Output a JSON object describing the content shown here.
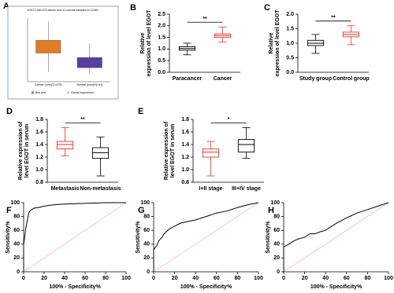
{
  "chart_data": [
    {
      "type": "screenshot",
      "panel": "A",
      "title": "EGOT with 475 cancer and 41 normal samples in COAD",
      "categories": [
        "Cancer (num(T)=475)",
        "Normal (num(N)=41)"
      ],
      "colors": [
        "#e07b26",
        "#5a3d9e"
      ],
      "legend": [
        "Box plot",
        "Global expression"
      ]
    },
    {
      "type": "box",
      "panel": "B",
      "ylabel": [
        "Relative",
        "expression of level EGOT"
      ],
      "categories": [
        "Paracancer",
        "Cancer"
      ],
      "colors": [
        "#000000",
        "#e8332a"
      ],
      "min": [
        0.75,
        1.3
      ],
      "q1": [
        0.95,
        1.5
      ],
      "median": [
        1.02,
        1.58
      ],
      "q3": [
        1.1,
        1.65
      ],
      "max": [
        1.25,
        1.95
      ],
      "ylim": [
        0,
        2.5
      ],
      "yticks": [
        {
          "value": 0,
          "label": "0.0"
        },
        0.5,
        {
          "value": 1,
          "label": "1.0"
        },
        1.5,
        {
          "value": 2,
          "label": "2.0"
        },
        2.5
      ],
      "annotation": "**"
    },
    {
      "type": "box",
      "panel": "C",
      "ylabel": [
        "Relative",
        "expression of level EGOT"
      ],
      "categories": [
        "Study group",
        "Control group"
      ],
      "colors": [
        "#000000",
        "#e8332a"
      ],
      "min": [
        0.65,
        0.95
      ],
      "q1": [
        0.92,
        1.22
      ],
      "median": [
        1.0,
        1.3
      ],
      "q3": [
        1.1,
        1.38
      ],
      "max": [
        1.3,
        1.6
      ],
      "ylim": [
        0,
        2
      ],
      "yticks": [
        {
          "value": 0,
          "label": "0.0"
        },
        0.5,
        {
          "value": 1,
          "label": "1.0"
        },
        1.5,
        {
          "value": 2,
          "label": "2.0"
        }
      ],
      "annotation": "**"
    },
    {
      "type": "box",
      "panel": "D",
      "ylabel": [
        "Relative expression of",
        "level EGOT in serum"
      ],
      "categories": [
        "Metastasis",
        "Non-metastasis"
      ],
      "colors": [
        "#e8332a",
        "#000000"
      ],
      "min": [
        1.22,
        0.9
      ],
      "q1": [
        1.33,
        1.18
      ],
      "median": [
        1.4,
        1.27
      ],
      "q3": [
        1.45,
        1.35
      ],
      "max": [
        1.67,
        1.52
      ],
      "ylim": [
        0.8,
        1.8
      ],
      "yticks": [
        0.8,
        {
          "value": 1,
          "label": "1.0"
        },
        1.2,
        1.4,
        1.6,
        1.8
      ],
      "annotation": "**"
    },
    {
      "type": "box",
      "panel": "E",
      "ylabel": [
        "Relative expression of",
        "level EGOT in serum"
      ],
      "categories": [
        "I+II stage",
        "III+IV stage"
      ],
      "colors": [
        "#e8332a",
        "#000000"
      ],
      "min": [
        0.9,
        1.18
      ],
      "q1": [
        1.2,
        1.28
      ],
      "median": [
        1.28,
        1.4
      ],
      "q3": [
        1.33,
        1.48
      ],
      "max": [
        1.45,
        1.67
      ],
      "ylim": [
        0.8,
        1.8
      ],
      "yticks": [
        0.8,
        {
          "value": 1,
          "label": "1.0"
        },
        1.2,
        1.4,
        1.6,
        1.8
      ],
      "annotation": "*"
    },
    {
      "type": "roc",
      "panel": "F",
      "xlabel": "100% - Specificity%",
      "ylabel": "Sensitivity%",
      "x": [
        0,
        0,
        1,
        2,
        3,
        4,
        5,
        6,
        8,
        10,
        15,
        20,
        30,
        40,
        60,
        80,
        100
      ],
      "values": [
        0,
        40,
        50,
        62,
        70,
        78,
        85,
        88,
        90,
        92,
        93,
        95,
        97,
        98,
        99,
        100,
        100
      ],
      "xlim": [
        0,
        100
      ],
      "ylim": [
        0,
        100
      ],
      "xticks": [
        0,
        20,
        40,
        60,
        80,
        100
      ],
      "yticks": [
        0,
        20,
        40,
        60,
        80,
        100
      ]
    },
    {
      "type": "roc",
      "panel": "G",
      "xlabel": "100% - Specificity%",
      "ylabel": "Sensitivity%",
      "x": [
        0,
        0,
        3,
        5,
        8,
        10,
        15,
        20,
        25,
        30,
        40,
        50,
        60,
        70,
        80,
        90,
        100
      ],
      "values": [
        0,
        32,
        38,
        45,
        50,
        55,
        62,
        66,
        70,
        72,
        75,
        80,
        85,
        88,
        93,
        97,
        100
      ],
      "xlim": [
        0,
        100
      ],
      "ylim": [
        0,
        100
      ],
      "xticks": [
        0,
        20,
        40,
        60,
        80,
        100
      ],
      "yticks": [
        0,
        20,
        40,
        60,
        80,
        100
      ]
    },
    {
      "type": "roc",
      "panel": "H",
      "xlabel": "100% - Specificity%",
      "ylabel": "Sensitivity%",
      "x": [
        0,
        0,
        5,
        10,
        15,
        20,
        25,
        30,
        35,
        40,
        50,
        60,
        70,
        80,
        90,
        100
      ],
      "values": [
        0,
        36,
        40,
        45,
        48,
        50,
        55,
        55,
        58,
        60,
        70,
        78,
        85,
        90,
        95,
        100
      ],
      "xlim": [
        0,
        100
      ],
      "ylim": [
        0,
        100
      ],
      "xticks": [
        0,
        20,
        40,
        60,
        80,
        100
      ],
      "yticks": [
        0,
        20,
        40,
        60,
        80,
        100
      ]
    }
  ]
}
